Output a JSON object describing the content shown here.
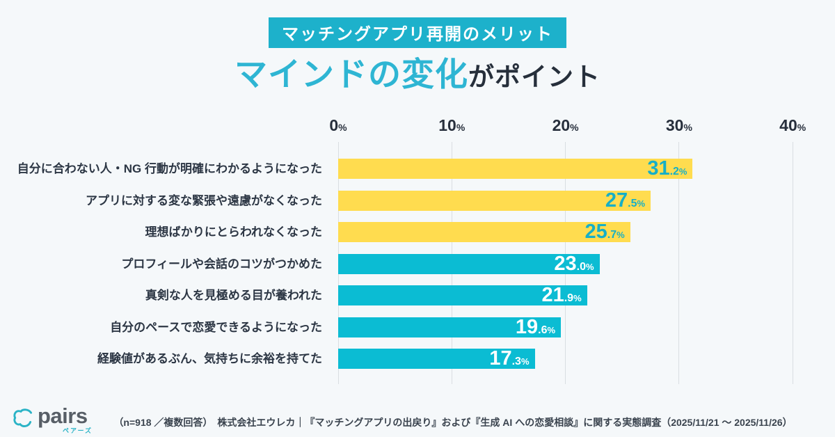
{
  "header": {
    "badge": "マッチングアプリ再開のメリット",
    "title_highlight": "マインドの変化",
    "title_suffix": "がポイント"
  },
  "chart_data": {
    "type": "bar",
    "orientation": "horizontal",
    "title": "マッチングアプリ再開のメリット",
    "subtitle": "マインドの変化がポイント",
    "categories": [
      "自分に合わない人・NG 行動が明確にわかるようになった",
      "アプリに対する変な緊張や遠慮がなくなった",
      "理想ばかりにとらわれなくなった",
      "プロフィールや会話のコツがつかめた",
      "真剣な人を見極める目が養われた",
      "自分のペースで恋愛できるようになった",
      "経験値があるぶん、気持ちに余裕を持てた"
    ],
    "values": [
      31.2,
      27.5,
      25.7,
      23.0,
      21.9,
      19.6,
      17.3
    ],
    "unit": "%",
    "xlim": [
      0,
      40
    ],
    "x_ticks": [
      0,
      10,
      20,
      30,
      40
    ],
    "grid": true,
    "legend": "none",
    "bar_colors": [
      "#FFDC4F",
      "#FFDC4F",
      "#FFDC4F",
      "#0BBCD3",
      "#0BBCD3",
      "#0BBCD3",
      "#0BBCD3"
    ],
    "value_label_colors": [
      "#16AFC7",
      "#16AFC7",
      "#16AFC7",
      "#FFFFFF",
      "#FFFFFF",
      "#FFFFFF",
      "#FFFFFF"
    ]
  },
  "footer": {
    "logo_brand": "pairs",
    "logo_kana": "ペアーズ",
    "source_note": "（n=918 ／複数回答）　株式会社エウレカ｜『マッチングアプリの出戻り』および『生成 AI への恋愛相談』に関する実態調査（2025/11/21 ～ 2025/11/26）"
  },
  "colors": {
    "background": "#F5F8FA",
    "accent_cyan": "#1DB1CB",
    "title_cyan": "#2EB5D3",
    "bar_yellow": "#FFDC4F",
    "bar_cyan": "#0BBCD3",
    "dark_text": "#272F3C",
    "gridline": "#D9DEE2",
    "logo_teal": "#2AB3C6"
  }
}
